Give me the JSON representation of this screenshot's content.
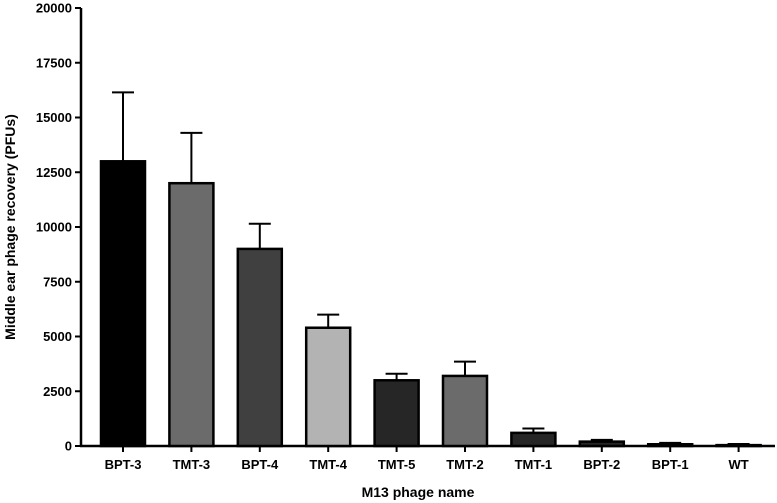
{
  "chart_data": {
    "type": "bar",
    "title": "",
    "xlabel": "M13 phage name",
    "ylabel": "Middle ear phage recovery (PFUs)",
    "ylim": [
      0,
      20000
    ],
    "yticks": [
      0,
      2500,
      5000,
      7500,
      10000,
      12500,
      15000,
      17500,
      20000
    ],
    "ytick_labels": [
      "0",
      "2500",
      "5000",
      "7500",
      "10000",
      "12500",
      "15000",
      "17500",
      "20000"
    ],
    "categories": [
      "BPT-3",
      "TMT-3",
      "BPT-4",
      "TMT-4",
      "TMT-5",
      "TMT-2",
      "TMT-1",
      "BPT-2",
      "BPT-1",
      "WT"
    ],
    "values": [
      13000,
      12000,
      9000,
      5400,
      3000,
      3200,
      600,
      200,
      80,
      40
    ],
    "errors": [
      3150,
      2300,
      1150,
      600,
      300,
      650,
      200,
      80,
      60,
      50
    ],
    "bar_colors": [
      "#000000",
      "#6b6b6b",
      "#404040",
      "#b3b3b3",
      "#262626",
      "#6b6b6b",
      "#262626",
      "#262626",
      "#262626",
      "#ffffff"
    ],
    "grid": false,
    "legend": "none"
  }
}
